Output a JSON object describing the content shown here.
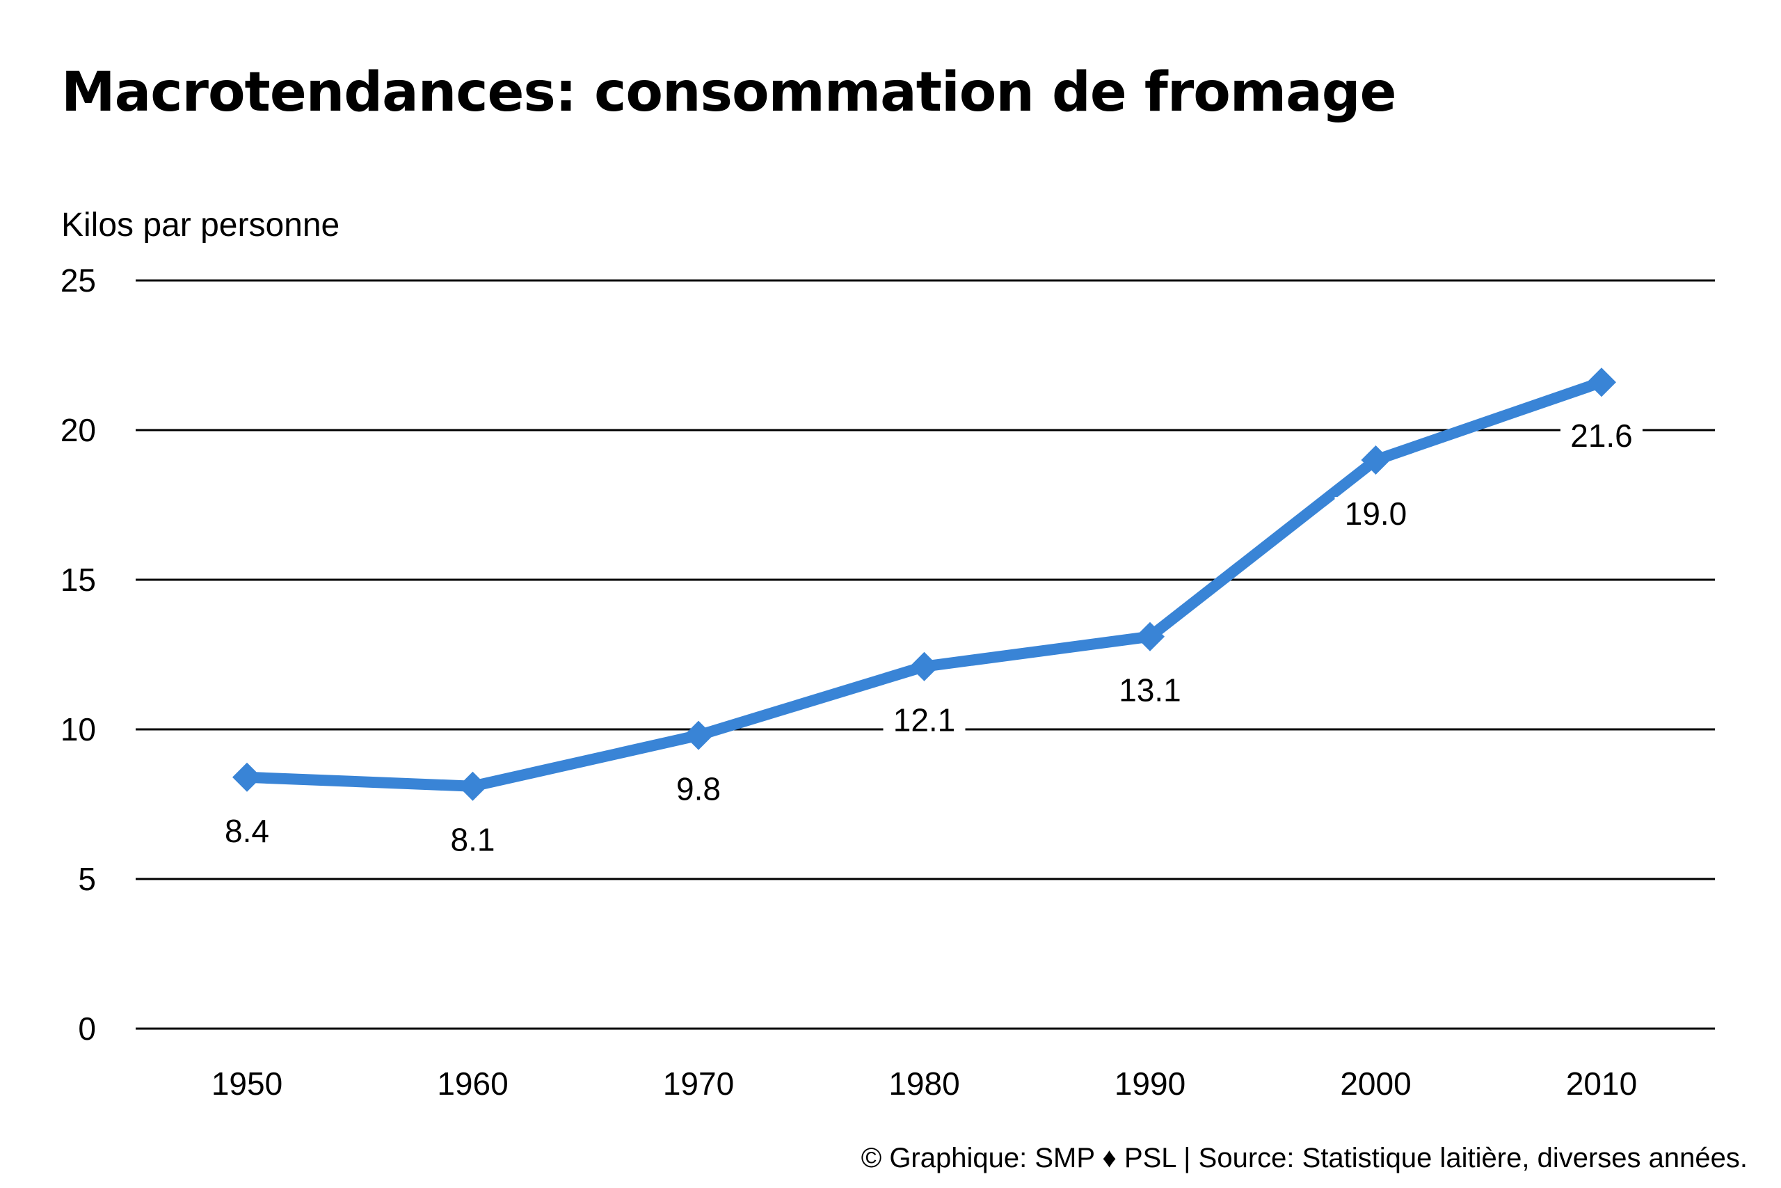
{
  "title": "Macrotendances: consommation de fromage",
  "footer": "© Graphique: SMP ♦ PSL | Source: Statistique laitière, diverses années.",
  "colors": {
    "line": "#3984d6",
    "grid": "#000000",
    "text": "#000000"
  },
  "chart_data": {
    "type": "line",
    "title": "Macrotendances: consommation de fromage",
    "xlabel": "",
    "ylabel": "Kilos par personne",
    "x": [
      "1950",
      "1960",
      "1970",
      "1980",
      "1990",
      "2000",
      "2010"
    ],
    "series": [
      {
        "values": [
          8.4,
          8.1,
          9.8,
          12.1,
          13.1,
          19.0,
          21.6
        ]
      }
    ],
    "data_labels": [
      "8.4",
      "8.1",
      "9.8",
      "12.1",
      "13.1",
      "19.0",
      "21.6"
    ],
    "ylim": [
      0,
      25
    ],
    "yticks": [
      0,
      5,
      10,
      15,
      20,
      25
    ],
    "grid": true,
    "marker": "diamond",
    "legend": "none"
  }
}
